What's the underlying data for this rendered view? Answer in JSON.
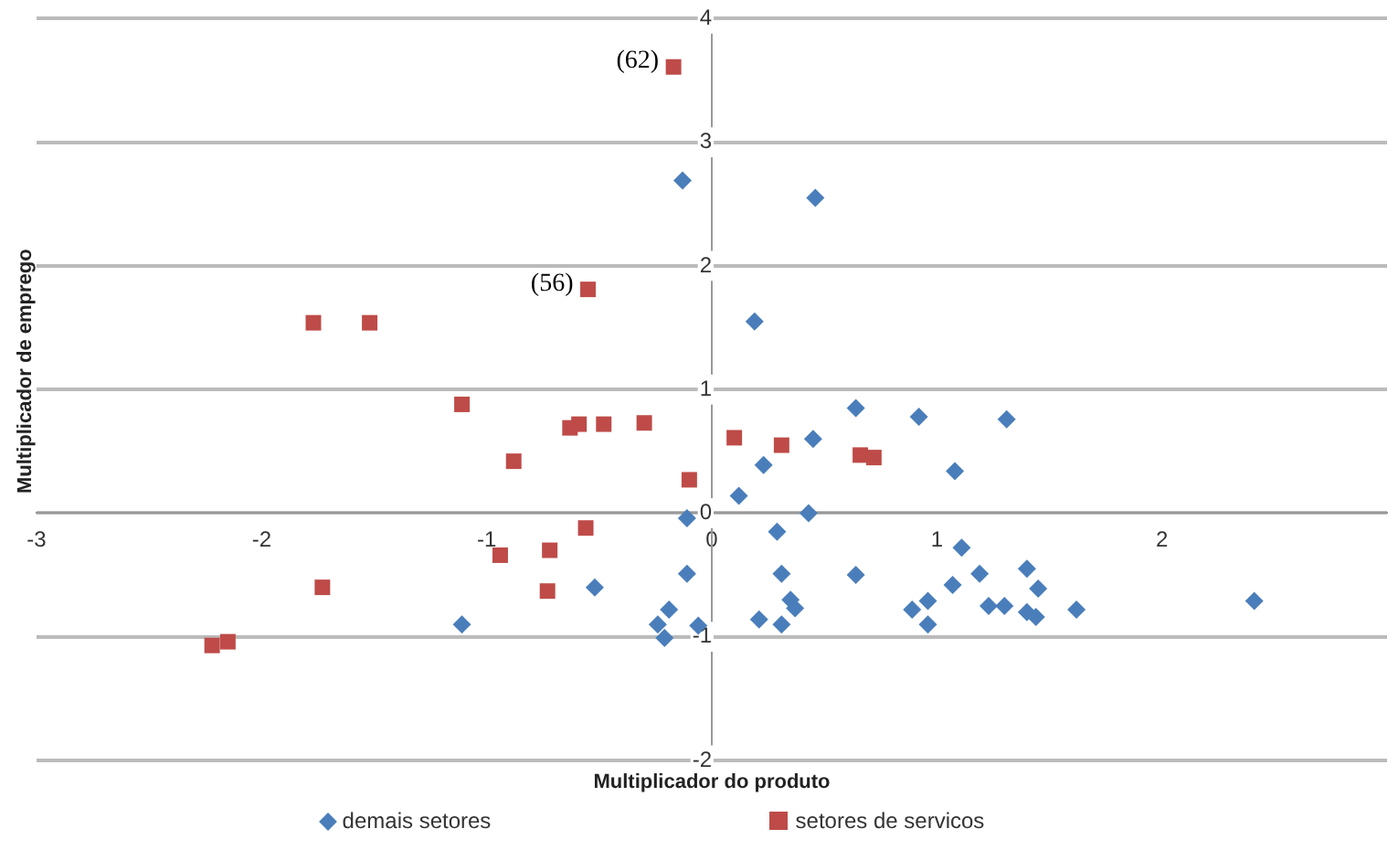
{
  "chart_data": {
    "type": "scatter",
    "xlabel": "Multiplicador do produto",
    "ylabel": "Multiplicador de emprego",
    "xlim": [
      -3,
      3
    ],
    "xticks": [
      -3,
      -2,
      -1,
      0,
      1,
      2
    ],
    "ylim": [
      -2,
      4
    ],
    "yticks": [
      -2,
      -1,
      0,
      1,
      2,
      3,
      4
    ],
    "grid": "y",
    "legend": "bottom",
    "annotations": [
      {
        "text": "(62)",
        "x": -0.17,
        "y": 3.61
      },
      {
        "text": "(56)",
        "x": -0.55,
        "y": 1.81
      }
    ],
    "series": [
      {
        "name": "demais setores",
        "color": "#4a7ebb",
        "marker": "diamond",
        "x": [
          -0.13,
          0.46,
          0.19,
          0.64,
          0.92,
          1.31,
          0.45,
          0.23,
          0.12,
          1.08,
          0.43,
          -0.11,
          0.29,
          1.11,
          -0.11,
          0.31,
          0.64,
          1.19,
          1.4,
          1.45,
          1.07,
          0.96,
          0.89,
          1.23,
          1.3,
          1.4,
          1.44,
          1.62,
          2.41,
          0.35,
          0.37,
          0.21,
          0.31,
          0.96,
          -0.06,
          -0.52,
          -1.11,
          -0.19,
          -0.24,
          -0.21
        ],
        "values": [
          2.69,
          2.55,
          1.55,
          0.85,
          0.78,
          0.76,
          0.6,
          0.39,
          0.14,
          0.34,
          0.0,
          -0.04,
          -0.15,
          -0.28,
          -0.49,
          -0.49,
          -0.5,
          -0.49,
          -0.45,
          -0.61,
          -0.58,
          -0.71,
          -0.78,
          -0.75,
          -0.75,
          -0.8,
          -0.84,
          -0.78,
          -0.71,
          -0.7,
          -0.77,
          -0.86,
          -0.9,
          -0.9,
          -0.91,
          -0.6,
          -0.9,
          -0.78,
          -0.9,
          -1.01
        ]
      },
      {
        "name": "setores de servicos",
        "color": "#be4b48",
        "marker": "square",
        "x": [
          -0.17,
          -0.55,
          -1.77,
          -1.52,
          -1.11,
          -0.63,
          -0.59,
          -0.48,
          -0.3,
          -0.88,
          -0.1,
          -0.56,
          -0.94,
          -0.72,
          -0.73,
          -1.73,
          -2.22,
          -2.15,
          0.1,
          0.31,
          0.66,
          0.72
        ],
        "values": [
          3.61,
          1.81,
          1.54,
          1.54,
          0.88,
          0.69,
          0.72,
          0.72,
          0.73,
          0.42,
          0.27,
          -0.12,
          -0.34,
          -0.3,
          -0.63,
          -0.6,
          -1.07,
          -1.04,
          0.61,
          0.55,
          0.47,
          0.45
        ]
      }
    ]
  }
}
